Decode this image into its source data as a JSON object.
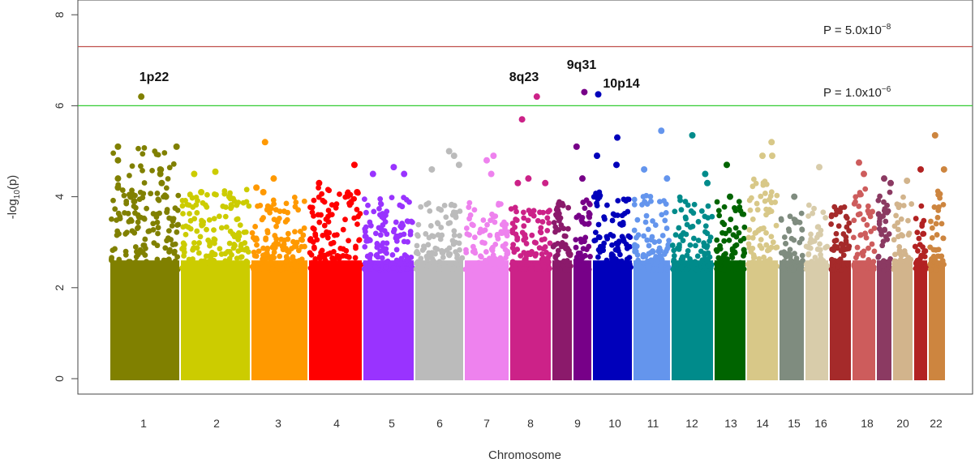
{
  "chart_data": {
    "type": "scatter",
    "xlabel": "Chromosome",
    "ylim": [
      0,
      8.5
    ],
    "yticks": [
      0,
      2,
      4,
      6,
      8
    ],
    "x_tick_labels": [
      "1",
      "2",
      "3",
      "4",
      "5",
      "6",
      "7",
      "8",
      "9",
      "10",
      "11",
      "12",
      "13",
      "14",
      "15",
      "16",
      "18",
      "20",
      "22"
    ],
    "ylabel": {
      "prefix": "-log",
      "sub": "10",
      "suffix": "(p)"
    },
    "thresholds": [
      {
        "value": 7.3,
        "color": "#c0504d",
        "label": "P = 5.0x10",
        "exp": "−8"
      },
      {
        "value": 6.0,
        "color": "#33cc33",
        "label": "P = 1.0x10",
        "exp": "−6"
      }
    ],
    "chromosomes": [
      {
        "chr": 1,
        "label": "1",
        "color": "#808000",
        "max": 5.1,
        "top": [
          [
            0.12,
            5.1
          ],
          [
            0.12,
            4.8
          ],
          [
            0.12,
            4.4
          ],
          [
            0.12,
            4.2
          ],
          [
            0.3,
            4.0
          ],
          [
            0.35,
            3.9
          ],
          [
            0.45,
            6.2
          ],
          [
            0.72,
            4.6
          ],
          [
            0.72,
            4.5
          ],
          [
            0.74,
            4.3
          ],
          [
            0.8,
            4.0
          ],
          [
            0.95,
            5.1
          ]
        ]
      },
      {
        "chr": 2,
        "label": "2",
        "color": "#cccc00",
        "max": 4.2,
        "top": [
          [
            0.2,
            4.5
          ],
          [
            0.5,
            4.55
          ],
          [
            0.3,
            4.1
          ],
          [
            0.7,
            4.0
          ]
        ]
      },
      {
        "chr": 3,
        "label": "3",
        "color": "#ff9900",
        "max": 4.0,
        "top": [
          [
            0.1,
            4.2
          ],
          [
            0.25,
            5.2
          ],
          [
            0.22,
            4.1
          ],
          [
            0.4,
            4.4
          ]
        ]
      },
      {
        "chr": 4,
        "label": "4",
        "color": "#ff0000",
        "max": 4.2,
        "top": [
          [
            0.2,
            4.3
          ],
          [
            0.85,
            4.7
          ],
          [
            0.9,
            4.1
          ]
        ]
      },
      {
        "chr": 5,
        "label": "5",
        "color": "#9933ff",
        "max": 4.0,
        "top": [
          [
            0.2,
            4.5
          ],
          [
            0.6,
            4.65
          ],
          [
            0.8,
            4.5
          ]
        ]
      },
      {
        "chr": 6,
        "label": "6",
        "color": "#bbbbbb",
        "max": 3.9,
        "top": [
          [
            0.35,
            4.6
          ],
          [
            0.7,
            5.0
          ],
          [
            0.8,
            4.9
          ],
          [
            0.9,
            4.7
          ]
        ]
      },
      {
        "chr": 7,
        "label": "7",
        "color": "#ee82ee",
        "max": 3.9,
        "top": [
          [
            0.5,
            4.8
          ],
          [
            0.65,
            4.9
          ],
          [
            0.6,
            4.5
          ]
        ]
      },
      {
        "chr": 8,
        "label": "8",
        "color": "#cc2288",
        "max": 3.8,
        "top": [
          [
            0.3,
            5.7
          ],
          [
            0.2,
            4.3
          ],
          [
            0.45,
            4.4
          ],
          [
            0.65,
            6.2
          ],
          [
            0.85,
            4.3
          ]
        ]
      },
      {
        "chr": "8b",
        "label": "",
        "color": "#8b1a6b",
        "max": 3.9,
        "top": []
      },
      {
        "chr": 9,
        "label": "9",
        "color": "#770088",
        "max": 4.0,
        "top": [
          [
            0.2,
            5.1
          ],
          [
            0.5,
            4.4
          ],
          [
            0.6,
            6.3
          ]
        ]
      },
      {
        "chr": 10,
        "label": "10",
        "color": "#0000bb",
        "max": 4.1,
        "top": [
          [
            0.15,
            6.25
          ],
          [
            0.12,
            4.9
          ],
          [
            0.6,
            4.7
          ],
          [
            0.62,
            5.3
          ]
        ]
      },
      {
        "chr": 11,
        "label": "11",
        "color": "#6495ed",
        "max": 4.1,
        "top": [
          [
            0.75,
            5.45
          ],
          [
            0.3,
            4.6
          ],
          [
            0.9,
            4.4
          ]
        ]
      },
      {
        "chr": 12,
        "label": "12",
        "color": "#008b8b",
        "max": 4.0,
        "top": [
          [
            0.5,
            5.35
          ],
          [
            0.8,
            4.5
          ],
          [
            0.85,
            4.3
          ]
        ]
      },
      {
        "chr": 13,
        "label": "13",
        "color": "#006400",
        "max": 3.9,
        "top": [
          [
            0.4,
            4.7
          ],
          [
            0.5,
            4.0
          ]
        ]
      },
      {
        "chr": 14,
        "label": "14",
        "color": "#d8c888",
        "max": 4.4,
        "top": [
          [
            0.5,
            4.9
          ],
          [
            0.78,
            5.2
          ],
          [
            0.8,
            4.9
          ]
        ]
      },
      {
        "chr": 15,
        "label": "15",
        "color": "#7f8c7f",
        "max": 3.7,
        "top": [
          [
            0.6,
            4.0
          ]
        ]
      },
      {
        "chr": 16,
        "label": "16",
        "color": "#d8ccaa",
        "max": 3.9,
        "top": [
          [
            0.6,
            4.65
          ]
        ]
      },
      {
        "chr": 17,
        "label": "",
        "color": "#a52a2a",
        "max": 3.8,
        "top": []
      },
      {
        "chr": 18,
        "label": "18",
        "color": "#cd5c5c",
        "max": 4.2,
        "top": [
          [
            0.3,
            4.75
          ],
          [
            0.5,
            4.5
          ]
        ]
      },
      {
        "chr": 19,
        "label": "",
        "color": "#8b3a62",
        "max": 4.1,
        "top": [
          [
            0.5,
            4.4
          ],
          [
            0.9,
            4.3
          ]
        ]
      },
      {
        "chr": 20,
        "label": "20",
        "color": "#d2b48c",
        "max": 4.0,
        "top": [
          [
            0.7,
            4.35
          ]
        ]
      },
      {
        "chr": 21,
        "label": "",
        "color": "#b22222",
        "max": 3.9,
        "top": [
          [
            0.5,
            4.6
          ]
        ]
      },
      {
        "chr": 22,
        "label": "22",
        "color": "#cd853f",
        "max": 4.2,
        "top": [
          [
            0.4,
            5.35
          ],
          [
            0.9,
            4.6
          ]
        ]
      }
    ],
    "annotations": [
      {
        "text": "1p22"
      },
      {
        "text": "8q23"
      },
      {
        "text": "9q31"
      },
      {
        "text": "10p14"
      }
    ]
  }
}
